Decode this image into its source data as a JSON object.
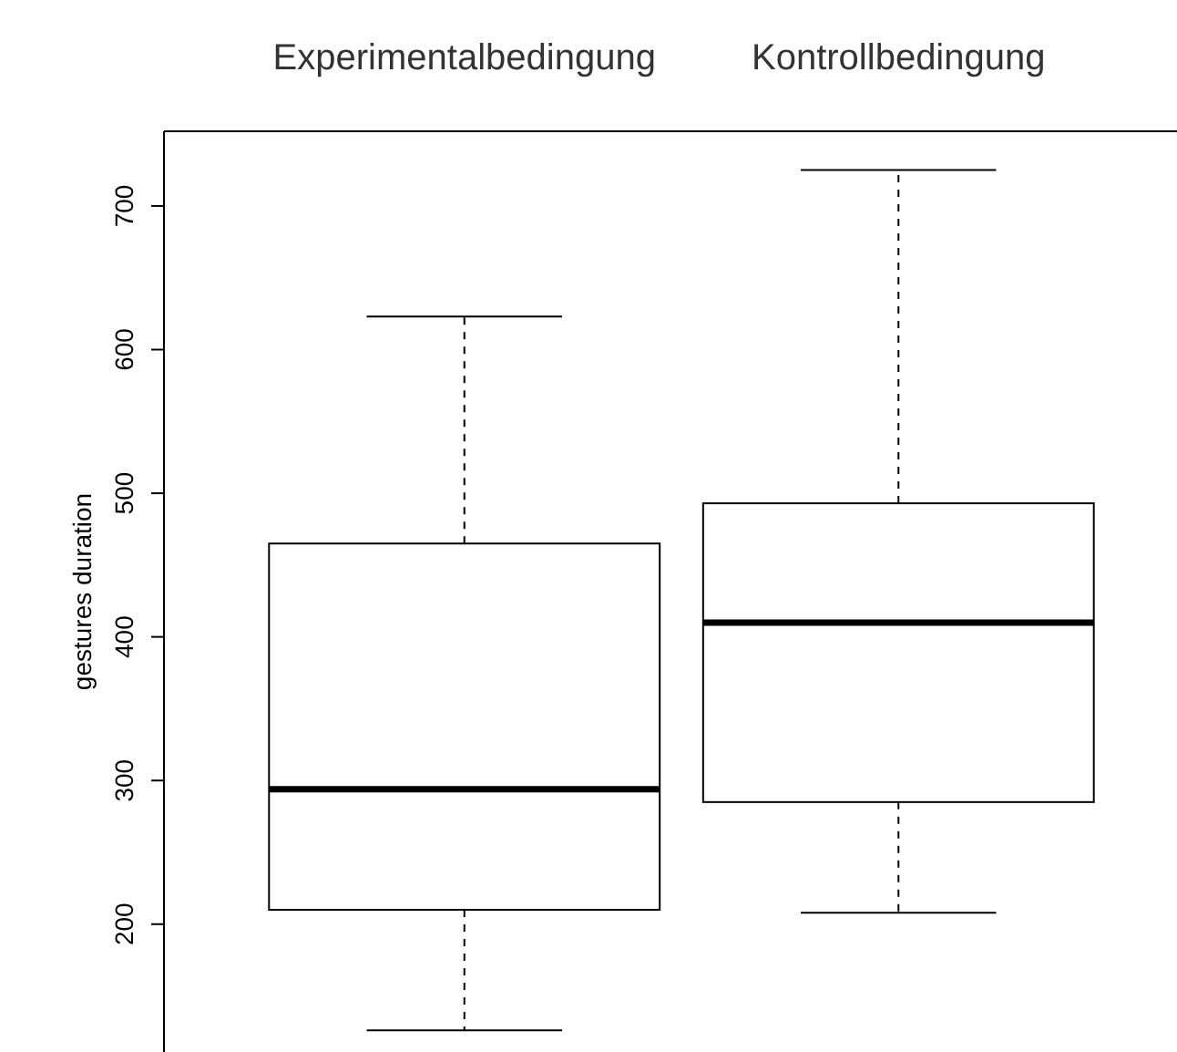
{
  "chart_data": {
    "type": "box",
    "ylabel": "gestures duration",
    "categories": [
      "Experimentalbedingung",
      "Kontrollbedingung"
    ],
    "boxes": [
      {
        "low": 126,
        "q1": 210,
        "median": 294,
        "q3": 465,
        "high": 623
      },
      {
        "low": 208,
        "q1": 285,
        "median": 410,
        "q3": 493,
        "high": 725
      }
    ],
    "ylim": [
      111,
      752
    ],
    "yticks": [
      200,
      300,
      400,
      500,
      600,
      700
    ],
    "grid": false
  }
}
